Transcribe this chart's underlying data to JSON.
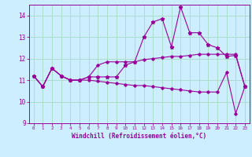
{
  "xlabel": "Windchill (Refroidissement éolien,°C)",
  "bg_color": "#cceeff",
  "line_color": "#990099",
  "grid_color": "#aaddcc",
  "x": [
    0,
    1,
    2,
    3,
    4,
    5,
    6,
    7,
    8,
    9,
    10,
    11,
    12,
    13,
    14,
    15,
    16,
    17,
    18,
    19,
    20,
    21,
    22,
    23
  ],
  "line1": [
    11.2,
    10.7,
    11.55,
    11.2,
    11.0,
    11.0,
    11.15,
    11.15,
    11.15,
    11.15,
    11.7,
    11.85,
    13.0,
    13.7,
    13.85,
    12.55,
    14.4,
    13.2,
    13.2,
    12.65,
    12.5,
    12.1,
    12.15,
    10.7
  ],
  "line2": [
    11.2,
    10.7,
    11.55,
    11.2,
    11.0,
    11.0,
    11.15,
    11.7,
    11.85,
    11.85,
    11.85,
    11.85,
    11.95,
    12.0,
    12.05,
    12.1,
    12.1,
    12.15,
    12.2,
    12.2,
    12.2,
    12.2,
    12.2,
    10.7
  ],
  "line3": [
    11.2,
    10.7,
    11.55,
    11.2,
    11.0,
    11.0,
    11.0,
    10.95,
    10.9,
    10.85,
    10.8,
    10.75,
    10.75,
    10.7,
    10.65,
    10.6,
    10.55,
    10.5,
    10.45,
    10.45,
    10.45,
    11.35,
    9.45,
    10.7
  ],
  "ylim": [
    9,
    14.5
  ],
  "yticks": [
    9,
    10,
    11,
    12,
    13,
    14
  ],
  "xlim": [
    -0.5,
    23.5
  ],
  "figsize": [
    3.2,
    2.0
  ],
  "dpi": 100
}
